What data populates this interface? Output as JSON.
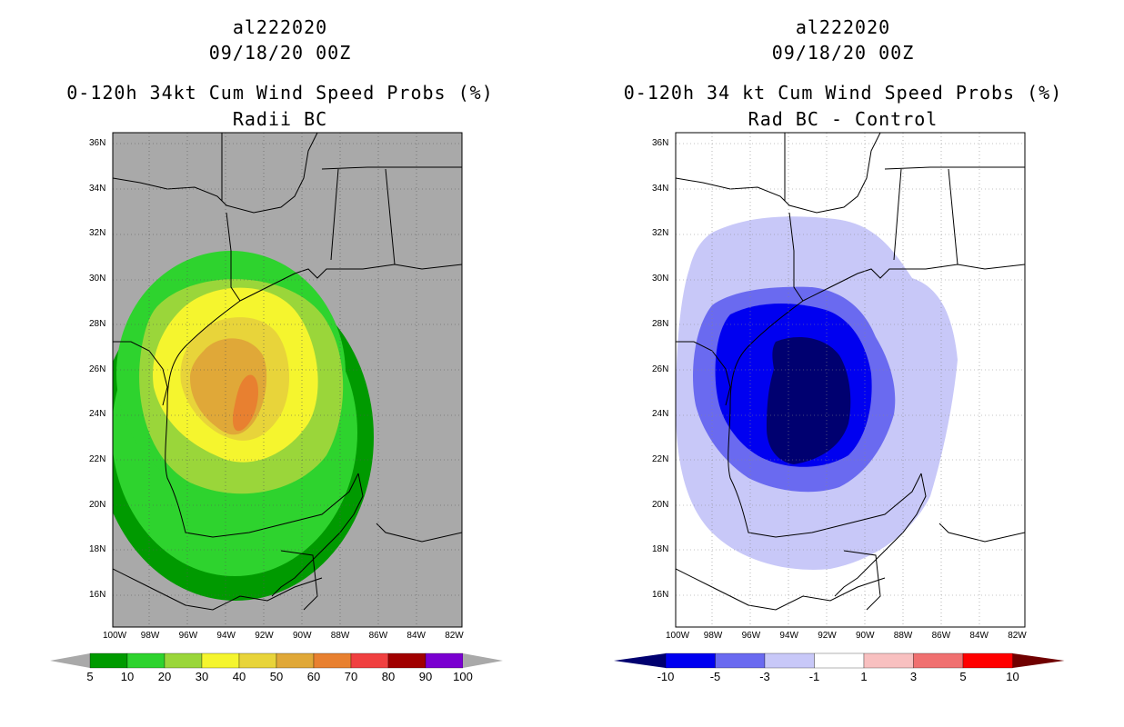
{
  "left_panel": {
    "storm_id": "al222020",
    "datetime": "09/18/20 00Z",
    "title": "0-120h 34kt Cum Wind Speed Probs (%)",
    "subtitle": "Radii BC",
    "background_color": "#a9a9a9",
    "colorbar": {
      "labels": [
        "5",
        "10",
        "20",
        "30",
        "40",
        "50",
        "60",
        "70",
        "80",
        "90",
        "100"
      ],
      "colors": [
        "#009a00",
        "#2ed32e",
        "#9ad63a",
        "#f5f52e",
        "#e8d43a",
        "#e0a838",
        "#e88030",
        "#f04040",
        "#a00000",
        "#7a00d0"
      ],
      "end_colors": [
        "#a9a9a9",
        "#a9a9a9"
      ]
    }
  },
  "right_panel": {
    "storm_id": "al222020",
    "datetime": "09/18/20 00Z",
    "title": "0-120h 34 kt Cum Wind Speed Probs (%)",
    "subtitle": "Rad BC - Control",
    "background_color": "#ffffff",
    "colorbar": {
      "labels": [
        "-10",
        "-5",
        "-3",
        "-1",
        "1",
        "3",
        "5",
        "10"
      ],
      "colors": [
        "#0000f0",
        "#6a6af0",
        "#c8c8f8",
        "#ffffff",
        "#f8c0c0",
        "#f07070",
        "#ff0000"
      ],
      "end_colors": [
        "#000070",
        "#700000"
      ]
    }
  },
  "axes": {
    "lat_labels": [
      "36N",
      "34N",
      "32N",
      "30N",
      "28N",
      "26N",
      "24N",
      "22N",
      "20N",
      "18N",
      "16N"
    ],
    "lon_labels": [
      "100W",
      "98W",
      "96W",
      "94W",
      "92W",
      "90W",
      "88W",
      "86W",
      "84W",
      "82W"
    ]
  }
}
